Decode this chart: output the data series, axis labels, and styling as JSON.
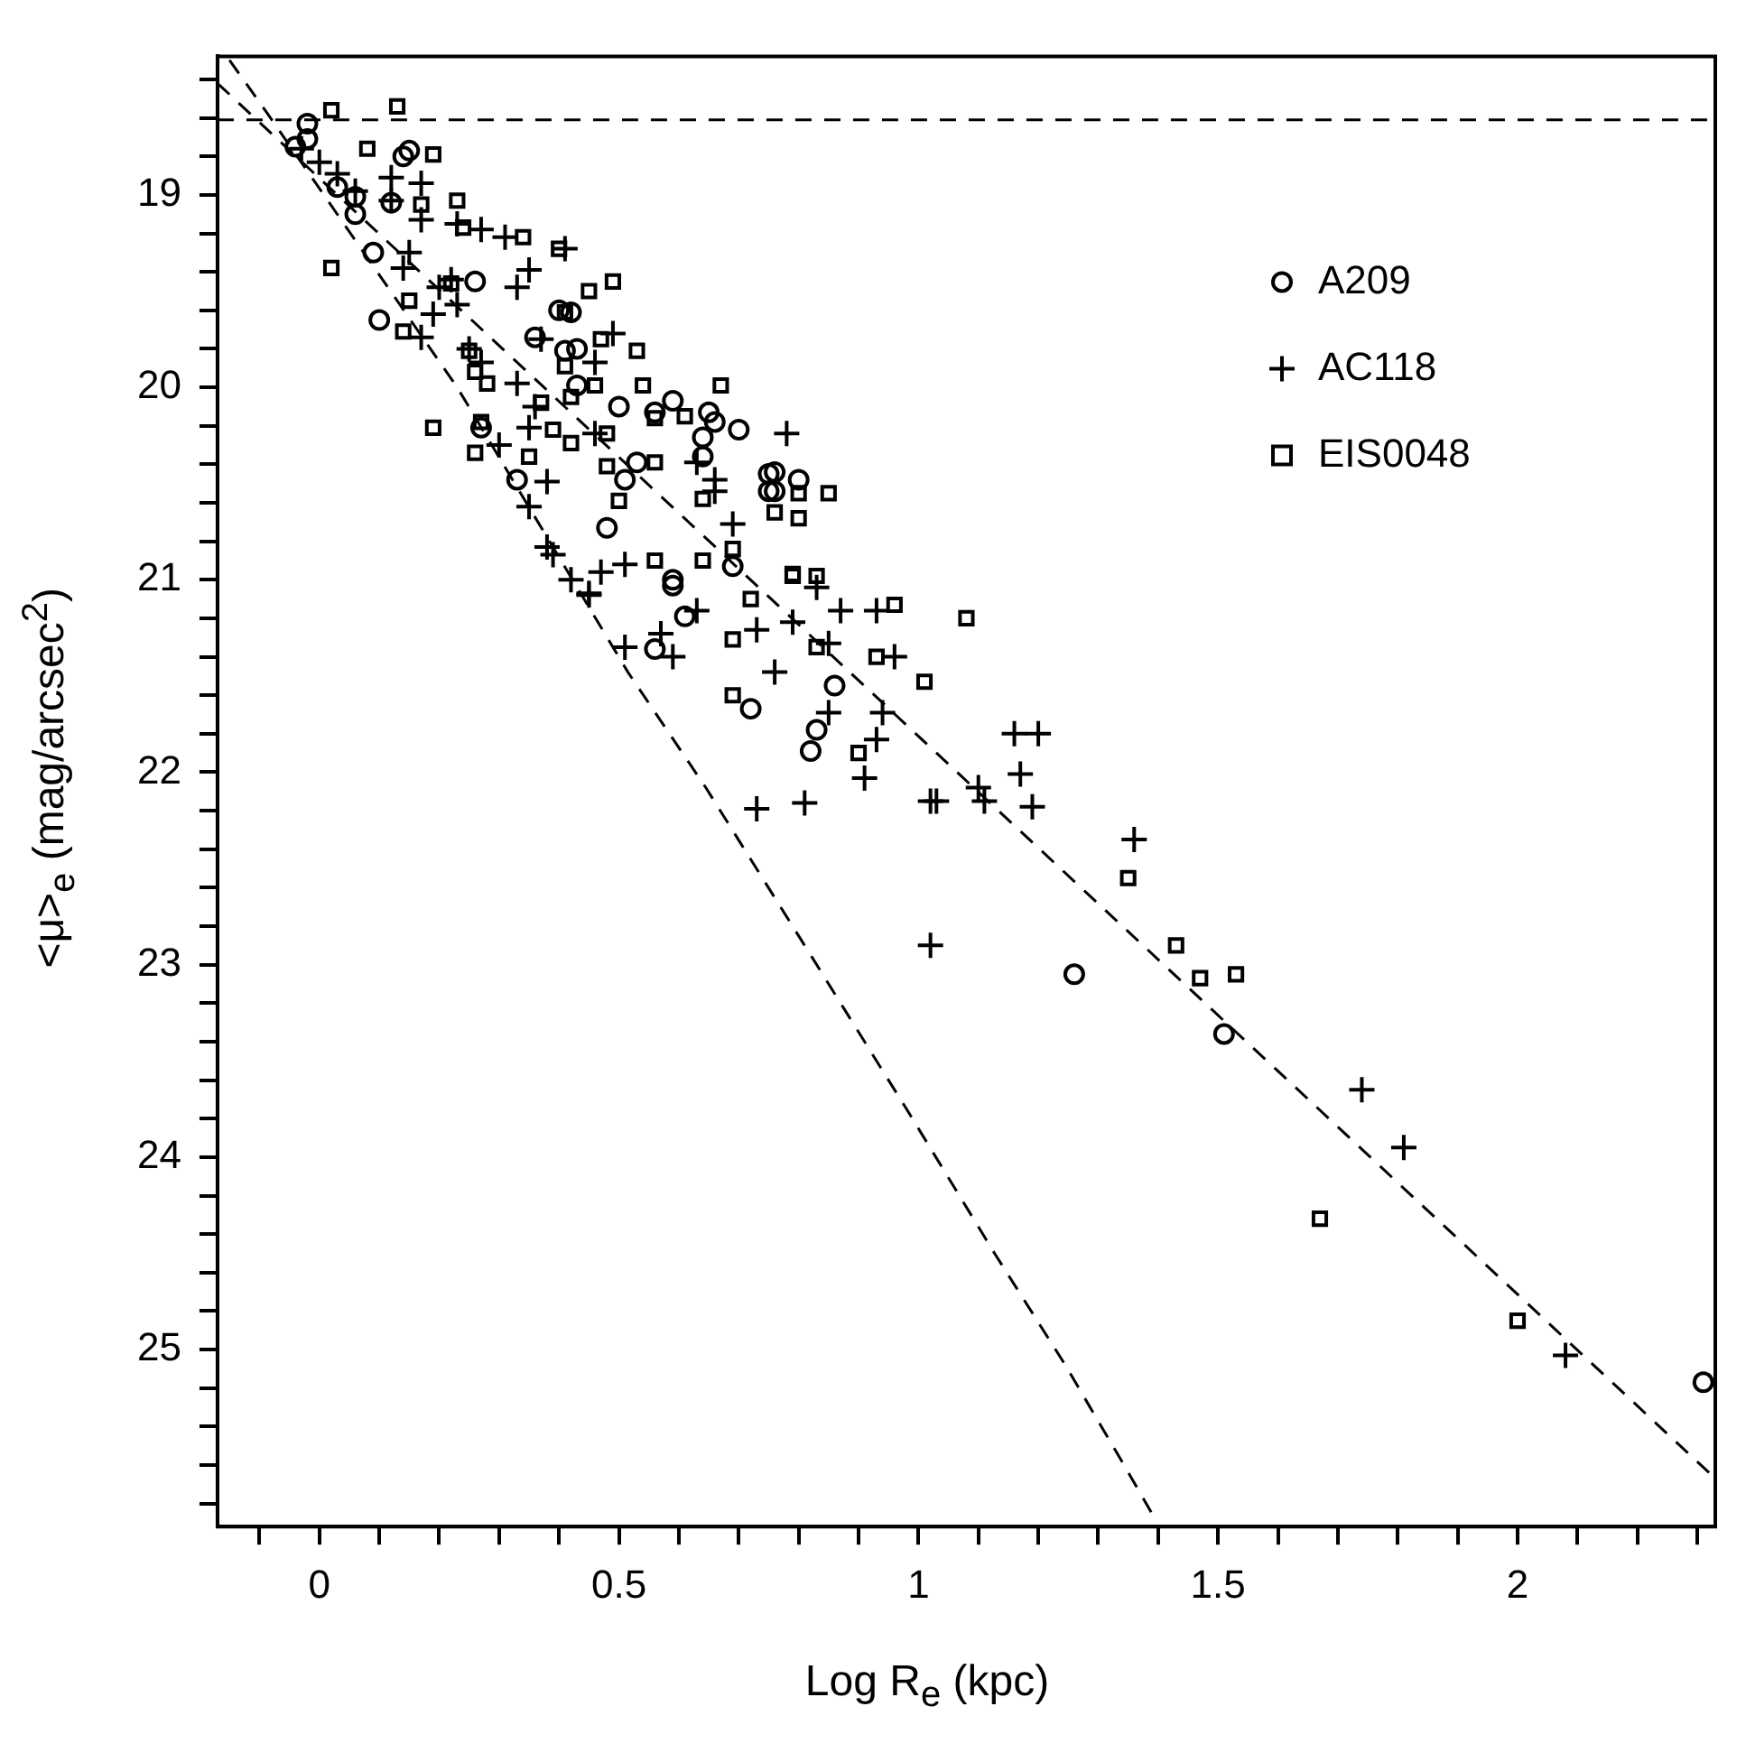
{
  "chart_data": {
    "type": "scatter",
    "xlabel": "Log R$_{e}$ (kpc)",
    "ylabel": "<μ>$_{e}$ (mag/arcsec$^{2}$)",
    "xlim": [
      -0.17,
      2.33
    ],
    "ylim": [
      25.92,
      18.28
    ],
    "xticks": [
      {
        "value": -0.1,
        "label": null
      },
      0,
      {
        "value": 0.1,
        "label": null
      },
      {
        "value": 0.2,
        "label": null
      },
      {
        "value": 0.3,
        "label": null
      },
      {
        "value": 0.4,
        "label": null
      },
      0.5,
      {
        "value": 0.6,
        "label": null
      },
      {
        "value": 0.7,
        "label": null
      },
      {
        "value": 0.8,
        "label": null
      },
      {
        "value": 0.9,
        "label": null
      },
      1,
      {
        "value": 1.1,
        "label": null
      },
      {
        "value": 1.2,
        "label": null
      },
      {
        "value": 1.3,
        "label": null
      },
      {
        "value": 1.4,
        "label": null
      },
      1.5,
      {
        "value": 1.6,
        "label": null
      },
      {
        "value": 1.7,
        "label": null
      },
      {
        "value": 1.8,
        "label": null
      },
      {
        "value": 1.9,
        "label": null
      },
      2,
      {
        "value": 2.1,
        "label": null
      },
      {
        "value": 2.2,
        "label": null
      },
      {
        "value": 2.3,
        "label": null
      }
    ],
    "yticks": [
      {
        "value": 18.4,
        "label": null
      },
      {
        "value": 18.6,
        "label": null
      },
      {
        "value": 18.8,
        "label": null
      },
      19,
      {
        "value": 19.2,
        "label": null
      },
      {
        "value": 19.4,
        "label": null
      },
      {
        "value": 19.6,
        "label": null
      },
      {
        "value": 19.8,
        "label": null
      },
      20,
      {
        "value": 20.2,
        "label": null
      },
      {
        "value": 20.4,
        "label": null
      },
      {
        "value": 20.6,
        "label": null
      },
      {
        "value": 20.8,
        "label": null
      },
      21,
      {
        "value": 21.2,
        "label": null
      },
      {
        "value": 21.4,
        "label": null
      },
      {
        "value": 21.6,
        "label": null
      },
      {
        "value": 21.8,
        "label": null
      },
      22,
      {
        "value": 22.2,
        "label": null
      },
      {
        "value": 22.4,
        "label": null
      },
      {
        "value": 22.6,
        "label": null
      },
      {
        "value": 22.8,
        "label": null
      },
      23,
      {
        "value": 23.2,
        "label": null
      },
      {
        "value": 23.4,
        "label": null
      },
      {
        "value": 23.6,
        "label": null
      },
      {
        "value": 23.8,
        "label": null
      },
      24,
      {
        "value": 24.2,
        "label": null
      },
      {
        "value": 24.4,
        "label": null
      },
      {
        "value": 24.6,
        "label": null
      },
      {
        "value": 24.8,
        "label": null
      },
      25,
      {
        "value": 25.2,
        "label": null
      },
      {
        "value": 25.4,
        "label": null
      },
      {
        "value": 25.6,
        "label": null
      },
      {
        "value": 25.8,
        "label": null
      }
    ],
    "grid": false,
    "legend": "top right",
    "ref_lines": [
      {
        "axis": "y",
        "value": 18.61,
        "color": "#000000",
        "line_style": "dashed"
      }
    ],
    "series": [
      {
        "name": "A209",
        "type": "scatter",
        "marker": "circle",
        "color": "#000000",
        "x": [
          -0.02,
          -0.02,
          -0.04,
          0.14,
          0.15,
          0.03,
          0.06,
          0.06,
          0.09,
          0.12,
          0.26,
          0.4,
          0.42,
          0.1,
          0.41,
          0.43,
          0.36,
          0.43,
          0.5,
          0.56,
          0.59,
          0.65,
          0.66,
          0.7,
          0.64,
          0.64,
          0.75,
          0.76,
          0.27,
          0.33,
          0.48,
          0.51,
          0.53,
          0.69,
          0.59,
          0.76,
          0.8,
          0.75,
          0.59,
          0.61,
          0.56,
          0.72,
          0.86,
          0.83,
          0.82,
          1.26,
          1.51,
          2.31
        ],
        "values": [
          18.63,
          18.71,
          18.75,
          18.8,
          18.77,
          18.96,
          19.01,
          19.1,
          19.3,
          19.04,
          19.45,
          19.6,
          19.61,
          19.65,
          19.81,
          19.8,
          19.74,
          19.99,
          20.1,
          20.13,
          20.07,
          20.13,
          20.18,
          20.22,
          20.26,
          20.36,
          20.45,
          20.54,
          20.21,
          20.48,
          20.73,
          20.48,
          20.39,
          20.93,
          21.0,
          20.44,
          20.48,
          20.54,
          21.03,
          21.19,
          21.36,
          21.67,
          21.55,
          21.78,
          21.89,
          23.05,
          23.36,
          25.17
        ]
      },
      {
        "name": "AC118",
        "type": "scatter",
        "marker": "cross",
        "color": "#000000",
        "x": [
          -0.03,
          0.0,
          0.03,
          0.06,
          0.12,
          0.17,
          0.12,
          0.17,
          0.23,
          0.27,
          0.31,
          0.41,
          0.15,
          0.14,
          0.35,
          0.33,
          0.22,
          0.2,
          0.23,
          0.19,
          0.17,
          0.25,
          0.37,
          0.49,
          0.46,
          0.27,
          0.33,
          0.36,
          0.35,
          0.3,
          0.38,
          0.63,
          0.66,
          0.66,
          0.69,
          0.35,
          0.38,
          0.39,
          0.42,
          0.47,
          0.51,
          0.45,
          0.46,
          0.78,
          0.83,
          0.45,
          0.57,
          0.59,
          0.51,
          0.63,
          0.73,
          0.79,
          0.87,
          0.93,
          0.85,
          0.96,
          0.76,
          0.85,
          0.94,
          0.93,
          0.91,
          0.81,
          0.73,
          1.02,
          1.02,
          1.16,
          1.2,
          1.17,
          1.1,
          1.11,
          1.19,
          1.03,
          1.36,
          1.74,
          1.81,
          2.08
        ],
        "values": [
          18.76,
          18.83,
          18.89,
          18.98,
          18.91,
          18.94,
          19.03,
          19.13,
          19.15,
          19.18,
          19.22,
          19.28,
          19.3,
          19.38,
          19.39,
          19.48,
          19.44,
          19.48,
          19.57,
          19.62,
          19.74,
          19.8,
          19.75,
          19.72,
          19.87,
          19.87,
          19.98,
          20.1,
          20.21,
          20.3,
          20.49,
          20.39,
          20.48,
          20.54,
          20.71,
          20.62,
          20.83,
          20.87,
          21.0,
          20.96,
          20.92,
          21.07,
          20.24,
          20.24,
          21.04,
          21.08,
          21.28,
          21.4,
          21.35,
          21.16,
          21.26,
          21.22,
          21.16,
          21.16,
          21.33,
          21.4,
          21.48,
          21.69,
          21.69,
          21.83,
          22.03,
          22.16,
          22.19,
          22.15,
          22.9,
          21.8,
          21.8,
          22.01,
          22.08,
          22.15,
          22.18,
          22.15,
          22.35,
          23.65,
          23.95,
          25.03
        ]
      },
      {
        "name": "EIS0048",
        "type": "scatter",
        "marker": "square",
        "color": "#000000",
        "x": [
          0.02,
          0.13,
          0.08,
          0.19,
          0.17,
          0.23,
          0.24,
          0.34,
          0.02,
          0.4,
          0.49,
          0.45,
          0.22,
          0.15,
          0.14,
          0.41,
          0.25,
          0.26,
          0.28,
          0.47,
          0.53,
          0.41,
          0.46,
          0.54,
          0.67,
          0.42,
          0.19,
          0.27,
          0.37,
          0.39,
          0.42,
          0.48,
          0.56,
          0.61,
          0.26,
          0.35,
          0.56,
          0.48,
          0.5,
          0.64,
          0.72,
          0.64,
          0.56,
          0.8,
          0.85,
          0.76,
          0.8,
          0.79,
          0.96,
          0.69,
          0.79,
          0.83,
          0.69,
          0.83,
          0.93,
          1.01,
          0.69,
          0.9,
          1.08,
          1.35,
          1.43,
          1.47,
          1.53,
          1.67,
          2.0
        ],
        "values": [
          18.56,
          18.54,
          18.76,
          18.79,
          19.05,
          19.03,
          19.17,
          19.22,
          19.38,
          19.28,
          19.45,
          19.5,
          19.46,
          19.55,
          19.71,
          19.61,
          19.81,
          19.92,
          19.98,
          19.75,
          19.81,
          19.89,
          19.99,
          19.99,
          19.99,
          20.05,
          20.21,
          20.18,
          20.08,
          20.22,
          20.29,
          20.24,
          20.16,
          20.15,
          20.34,
          20.36,
          20.39,
          20.41,
          20.59,
          20.58,
          21.1,
          20.9,
          20.9,
          20.55,
          20.55,
          20.65,
          20.68,
          20.98,
          21.13,
          20.84,
          20.97,
          20.98,
          21.31,
          21.35,
          21.4,
          21.53,
          21.6,
          21.9,
          21.2,
          22.55,
          22.9,
          23.07,
          23.05,
          24.32,
          24.85
        ]
      },
      {
        "type": "line",
        "line_style": "dashed",
        "color": "#000000",
        "x": [
          -0.17,
          2.33
        ],
        "values": [
          18.42,
          25.67
        ]
      },
      {
        "type": "line",
        "line_style": "dashed",
        "color": "#000000",
        "x": [
          -0.15,
          -0.086,
          0.23,
          0.515,
          0.645,
          0.822,
          0.98,
          1.127,
          1.245,
          1.343,
          1.393
        ],
        "values": [
          18.3,
          18.58,
          20.0,
          21.48,
          22.08,
          22.96,
          23.75,
          24.5,
          25.08,
          25.6,
          25.87
        ]
      }
    ]
  }
}
